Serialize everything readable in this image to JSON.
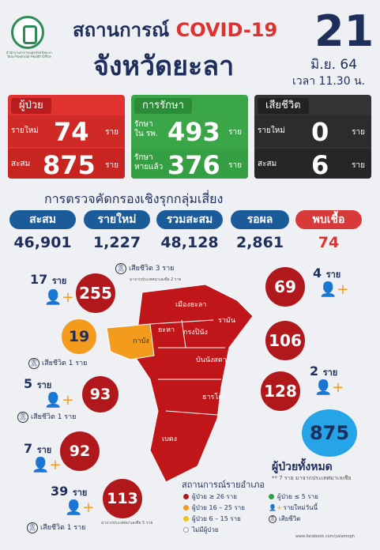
{
  "header": {
    "title_prefix": "สถานการณ์",
    "title_highlight": "COVID-19",
    "title_province": "จังหวัดยะลา",
    "day": "21",
    "month_year": "มิ.ย. 64",
    "time": "เวลา 11.30 น.",
    "office_caption": "สำนักงานสาธารณสุขจังหวัดยะลา Yala Provincial Health Office"
  },
  "patients": {
    "header": "ผู้ป่วย",
    "new_label": "รายใหม่",
    "new_value": "74",
    "new_unit": "ราย",
    "total_label": "สะสม",
    "total_value": "875",
    "total_unit": "ราย"
  },
  "treatment": {
    "header": "การรักษา",
    "hosp_label": "รักษา ใน รพ.",
    "hosp_value": "493",
    "hosp_unit": "ราย",
    "recovered_label": "รักษา หายแล้ว",
    "recovered_value": "376",
    "recovered_unit": "ราย"
  },
  "deaths": {
    "header": "เสียชีวิต",
    "new_label": "รายใหม่",
    "new_value": "0",
    "new_unit": "ราย",
    "total_label": "สะสม",
    "total_value": "6",
    "total_unit": "ราย"
  },
  "screening": {
    "title": "การตรวจคัดกรองเชิงรุกกลุ่มเสี่ยง",
    "items": [
      {
        "label": "สะสม",
        "value": "46,901"
      },
      {
        "label": "รายใหม่",
        "value": "1,227"
      },
      {
        "label": "รวมสะสม",
        "value": "48,128"
      },
      {
        "label": "รอผล",
        "value": "2,861"
      },
      {
        "label": "พบเชื้อ",
        "value": "74"
      }
    ]
  },
  "districts": {
    "mueang": {
      "name": "เมืองยะลา",
      "total": "255",
      "new": "17",
      "unit": "ราย",
      "death": "เสียชีวิต 3 ราย",
      "death_note": "มาจากประเทศมาเลเซีย 2 ราย"
    },
    "kabang": {
      "name": "กาบัง",
      "total": "19",
      "death": "เสียชีวิต 1 ราย"
    },
    "yaha": {
      "name": "ยะหา",
      "total": "93",
      "new": "5",
      "unit": "ราย",
      "death": "เสียชีวิต 1 ราย"
    },
    "krongpinang": {
      "name": "กรงปินัง",
      "total": "92",
      "new": "7",
      "unit": "ราย"
    },
    "betong": {
      "name": "เบตง",
      "total": "113",
      "new": "39",
      "unit": "ราย",
      "death": "เสียชีวิต 1 ราย",
      "note": "มาจากประเทศมาเลเซีย 5 ราย"
    },
    "raman": {
      "name": "รามัน",
      "total": "69",
      "new": "4",
      "unit": "ราย"
    },
    "bannangsata": {
      "name": "บันนังสตา",
      "total": "106"
    },
    "thanto": {
      "name": "ธารโต",
      "total": "128",
      "new": "2",
      "unit": "ราย"
    }
  },
  "total": {
    "value": "875",
    "label": "ผู้ป่วยทั้งหมด",
    "note": "** 7 ราย มาจากประเทศมาเลเซีย"
  },
  "legend": {
    "title": "สถานการณ์รายอำเภอ",
    "items": [
      {
        "label": "ผู้ป่วย ≥ 26 ราย",
        "color": "#b0181c"
      },
      {
        "label": "ผู้ป่วย ≤ 5 ราย",
        "color": "#2e9e46"
      },
      {
        "label": "ผู้ป่วย 16 – 25 ราย",
        "color": "#f29b1d"
      },
      {
        "label": "รายใหม่วันนี้",
        "color": "#f29b1d"
      },
      {
        "label": "ผู้ป่วย 6 – 15 ราย",
        "color": "#f0c419"
      },
      {
        "label": "เสียชีวิต",
        "color": "#333333"
      },
      {
        "label": "ไม่มีผู้ป่วย",
        "color": "#ffffff"
      }
    ]
  },
  "footer": "www.facebook.com/yalamoph"
}
